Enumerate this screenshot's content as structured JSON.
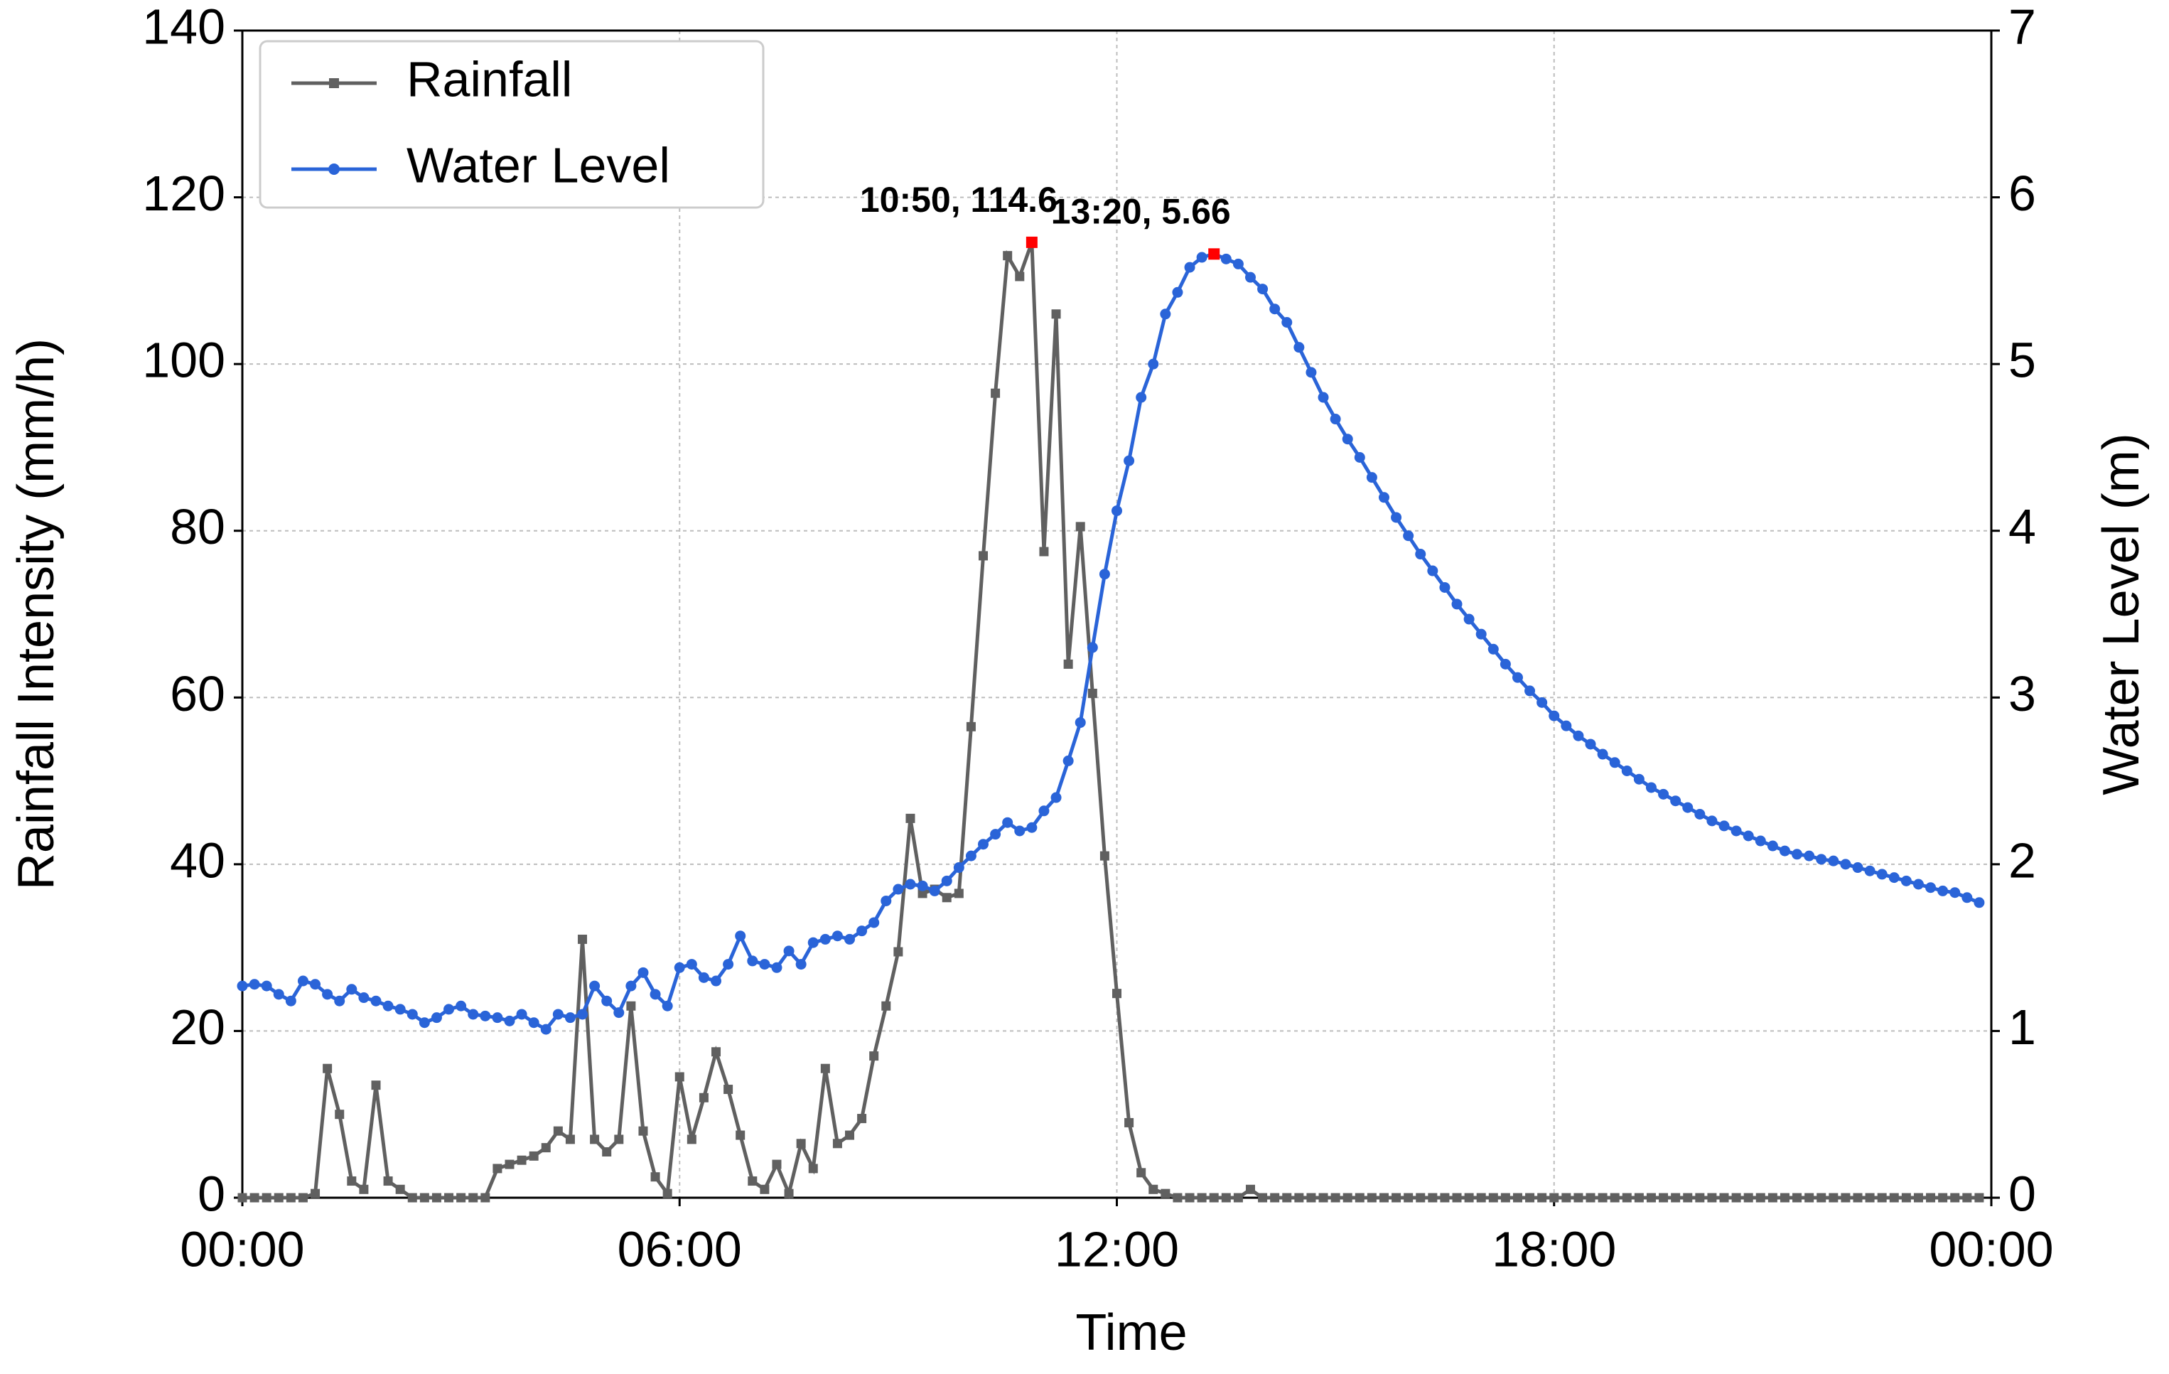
{
  "chart_data": {
    "type": "line",
    "x": [
      0,
      10,
      20,
      30,
      40,
      50,
      60,
      70,
      80,
      90,
      100,
      110,
      120,
      130,
      140,
      150,
      160,
      170,
      180,
      190,
      200,
      210,
      220,
      230,
      240,
      250,
      260,
      270,
      280,
      290,
      300,
      310,
      320,
      330,
      340,
      350,
      360,
      370,
      380,
      390,
      400,
      410,
      420,
      430,
      440,
      450,
      460,
      470,
      480,
      490,
      500,
      510,
      520,
      530,
      540,
      550,
      560,
      570,
      580,
      590,
      600,
      610,
      620,
      630,
      640,
      650,
      660,
      670,
      680,
      690,
      700,
      710,
      720,
      730,
      740,
      750,
      760,
      770,
      780,
      790,
      800,
      810,
      820,
      830,
      840,
      850,
      860,
      870,
      880,
      890,
      900,
      910,
      920,
      930,
      940,
      950,
      960,
      970,
      980,
      990,
      1000,
      1010,
      1020,
      1030,
      1040,
      1050,
      1060,
      1070,
      1080,
      1090,
      1100,
      1110,
      1120,
      1130,
      1140,
      1150,
      1160,
      1170,
      1180,
      1190,
      1200,
      1210,
      1220,
      1230,
      1240,
      1250,
      1260,
      1270,
      1280,
      1290,
      1300,
      1310,
      1320,
      1330,
      1340,
      1350,
      1360,
      1370,
      1380,
      1390,
      1400,
      1410,
      1420,
      1430
    ],
    "series": [
      {
        "name": "Rainfall",
        "color": "#606060",
        "marker": "square",
        "axis": "y",
        "values": [
          0,
          0,
          0,
          0,
          0,
          0,
          0.5,
          15.5,
          10,
          2,
          1,
          13.5,
          2,
          1,
          0,
          0,
          0,
          0,
          0,
          0,
          0,
          3.5,
          4,
          4.5,
          5,
          6,
          8,
          7,
          31,
          7,
          5.5,
          7,
          23,
          8,
          2.5,
          0.5,
          14.5,
          7,
          12,
          17.5,
          13,
          7.5,
          2,
          1,
          4,
          0.5,
          6.5,
          3.5,
          15.5,
          6.5,
          7.5,
          9.5,
          17,
          23,
          29.5,
          45.5,
          36.5,
          37,
          36,
          36.5,
          56.5,
          77,
          96.5,
          113,
          110.5,
          114.6,
          77.5,
          106,
          64,
          80.5,
          60.5,
          41,
          24.5,
          9,
          3,
          1,
          0.5,
          0,
          0,
          0,
          0,
          0,
          0,
          1,
          0,
          0,
          0,
          0,
          0,
          0,
          0,
          0,
          0,
          0,
          0,
          0,
          0,
          0,
          0,
          0,
          0,
          0,
          0,
          0,
          0,
          0,
          0,
          0,
          0,
          0,
          0,
          0,
          0,
          0,
          0,
          0,
          0,
          0,
          0,
          0,
          0,
          0,
          0,
          0,
          0,
          0,
          0,
          0,
          0,
          0,
          0,
          0,
          0,
          0,
          0,
          0,
          0,
          0,
          0,
          0,
          0,
          0,
          0,
          0
        ]
      },
      {
        "name": "Water Level",
        "color": "#2a64d8",
        "marker": "circle",
        "axis": "y2",
        "values": [
          1.27,
          1.28,
          1.27,
          1.22,
          1.18,
          1.3,
          1.28,
          1.22,
          1.18,
          1.25,
          1.2,
          1.18,
          1.15,
          1.13,
          1.1,
          1.05,
          1.08,
          1.13,
          1.15,
          1.1,
          1.09,
          1.08,
          1.06,
          1.1,
          1.05,
          1.01,
          1.1,
          1.08,
          1.1,
          1.27,
          1.18,
          1.11,
          1.27,
          1.35,
          1.22,
          1.15,
          1.38,
          1.4,
          1.32,
          1.3,
          1.4,
          1.57,
          1.42,
          1.4,
          1.38,
          1.48,
          1.4,
          1.53,
          1.55,
          1.57,
          1.55,
          1.6,
          1.65,
          1.78,
          1.85,
          1.88,
          1.87,
          1.84,
          1.9,
          1.98,
          2.05,
          2.12,
          2.18,
          2.25,
          2.2,
          2.22,
          2.32,
          2.4,
          2.62,
          2.85,
          3.3,
          3.74,
          4.12,
          4.42,
          4.8,
          5.0,
          5.3,
          5.43,
          5.58,
          5.64,
          5.66,
          5.63,
          5.6,
          5.52,
          5.45,
          5.33,
          5.25,
          5.1,
          4.95,
          4.8,
          4.67,
          4.55,
          4.44,
          4.32,
          4.2,
          4.08,
          3.97,
          3.86,
          3.76,
          3.66,
          3.56,
          3.47,
          3.38,
          3.29,
          3.2,
          3.12,
          3.04,
          2.97,
          2.89,
          2.83,
          2.77,
          2.72,
          2.66,
          2.61,
          2.56,
          2.51,
          2.46,
          2.42,
          2.38,
          2.34,
          2.3,
          2.26,
          2.23,
          2.2,
          2.17,
          2.14,
          2.11,
          2.08,
          2.06,
          2.05,
          2.03,
          2.02,
          2.0,
          1.98,
          1.96,
          1.94,
          1.92,
          1.9,
          1.88,
          1.86,
          1.84,
          1.83,
          1.8,
          1.77
        ]
      }
    ],
    "xlabel": "Time",
    "ylabel": "Rainfall Intensity (mm/h)",
    "y2label": "Water Level (m)",
    "xlim": [
      0,
      1440
    ],
    "xticks": [
      {
        "value": 0,
        "label": "00:00"
      },
      {
        "value": 360,
        "label": "06:00"
      },
      {
        "value": 720,
        "label": "12:00"
      },
      {
        "value": 1080,
        "label": "18:00"
      },
      {
        "value": 1440,
        "label": "00:00"
      }
    ],
    "ylim": [
      0,
      140
    ],
    "yticks": [
      0,
      20,
      40,
      60,
      80,
      100,
      120,
      140
    ],
    "y2lim": [
      0,
      7
    ],
    "y2ticks": [
      0,
      1,
      2,
      3,
      4,
      5,
      6,
      7
    ],
    "annotations": [
      {
        "text": "10:50, 114.6",
        "x": 650,
        "y": 114.6,
        "axis": "y",
        "color": "#ff0000"
      },
      {
        "text": "13:20, 5.66",
        "x": 800,
        "y": 5.66,
        "axis": "y2",
        "color": "#ff0000"
      }
    ],
    "grid": true,
    "legend": "upper left"
  }
}
